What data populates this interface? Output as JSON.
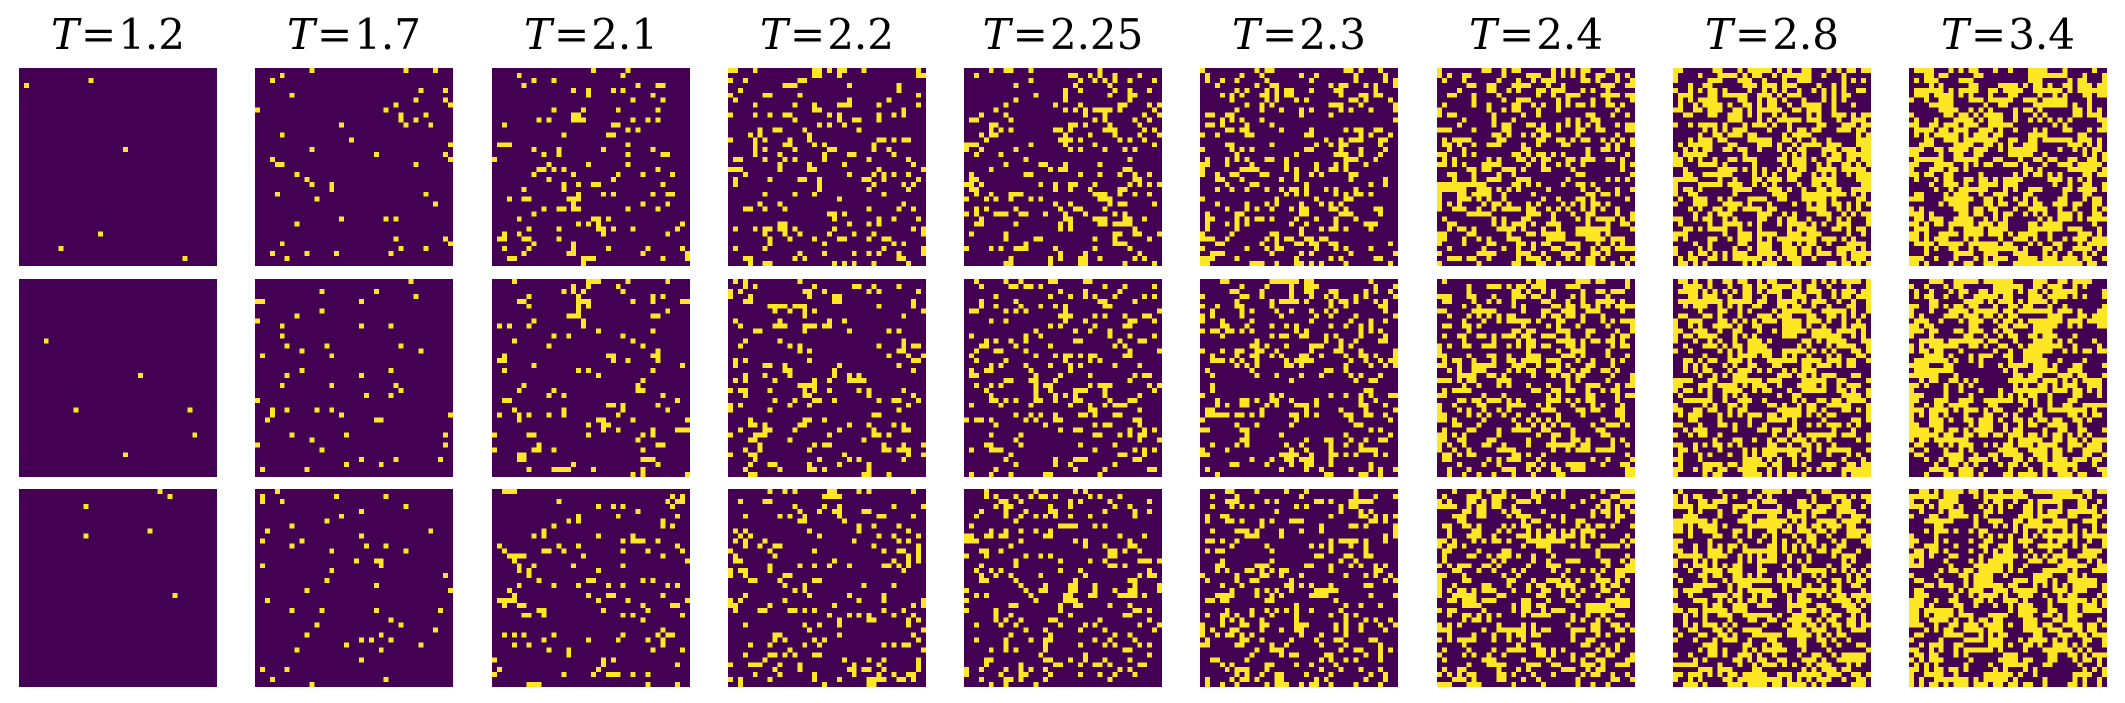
{
  "figure": {
    "columns": [
      {
        "var": "T",
        "eq": "=",
        "value": "1.2"
      },
      {
        "var": "T",
        "eq": "=",
        "value": "1.7"
      },
      {
        "var": "T",
        "eq": "=",
        "value": "2.1"
      },
      {
        "var": "T",
        "eq": "=",
        "value": "2.2"
      },
      {
        "var": "T",
        "eq": "=",
        "value": "2.25"
      },
      {
        "var": "T",
        "eq": "=",
        "value": "2.3"
      },
      {
        "var": "T",
        "eq": "=",
        "value": "2.4"
      },
      {
        "var": "T",
        "eq": "=",
        "value": "2.8"
      },
      {
        "var": "T",
        "eq": "=",
        "value": "3.4"
      }
    ],
    "rows": 3,
    "lattice_size": 40,
    "up_fraction_per_column": [
      0.004,
      0.035,
      0.09,
      0.14,
      0.17,
      0.22,
      0.35,
      0.48,
      0.5
    ],
    "cluster_tendency_per_column": [
      0.0,
      0.05,
      0.3,
      0.55,
      0.6,
      0.65,
      0.6,
      0.35,
      0.1
    ],
    "colors": {
      "spin_down": "#440154",
      "spin_up": "#fde725",
      "background": "#ffffff"
    }
  }
}
